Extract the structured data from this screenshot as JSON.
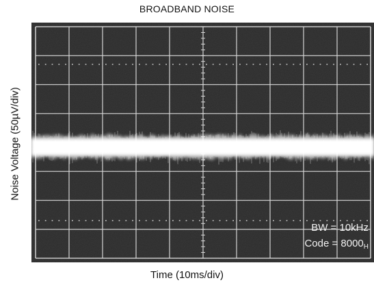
{
  "chart_data": {
    "type": "line",
    "title": "BROADBAND NOISE",
    "xlabel": "Time (10ms/div)",
    "ylabel": "Noise Voltage (50µV/div)",
    "x_divisions": 10,
    "y_divisions": 8,
    "grid": true,
    "background": "#2a2a2a",
    "trace_color": "#ffffff",
    "grid_color": "#d9d9d9",
    "annotations": {
      "bw": "BW = 10kHz",
      "code_prefix": "Code = 8000",
      "code_subscript": "H"
    }
  }
}
